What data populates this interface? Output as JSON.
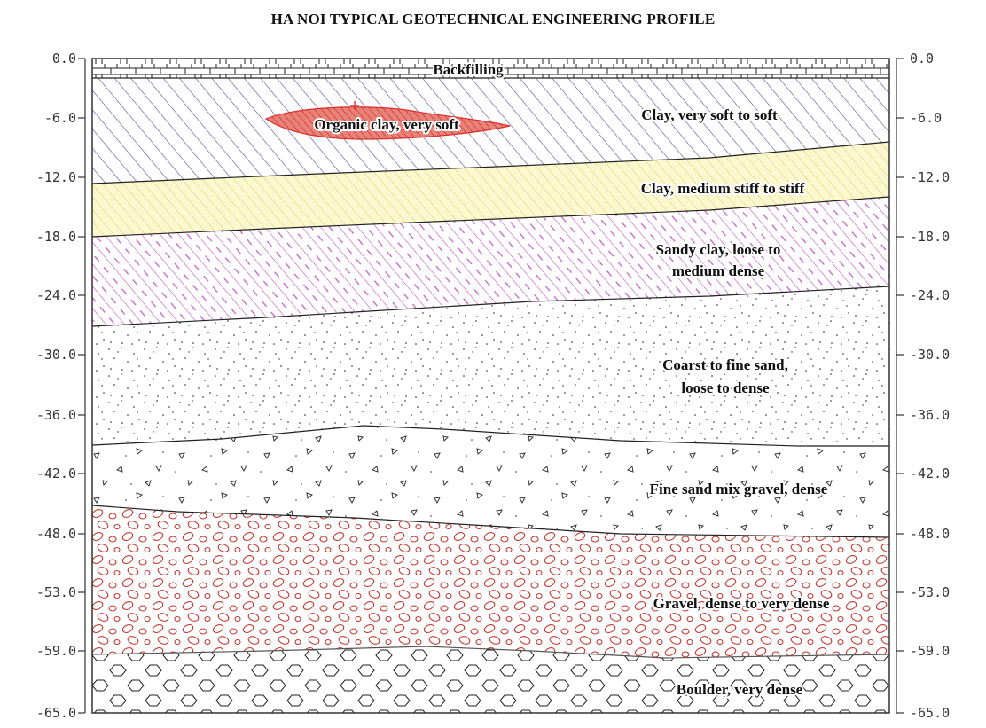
{
  "title": "HA NOI TYPICAL GEOTECHNICAL ENGINEERING PROFILE",
  "axis_ticks": [
    "0.0",
    "-6.0",
    "-12.0",
    "-18.0",
    "-24.0",
    "-30.0",
    "-36.0",
    "-42.0",
    "-48.0",
    "-53.0",
    "-59.0",
    "-65.0"
  ],
  "layers": [
    {
      "key": "backfilling",
      "label": [
        "Backfilling"
      ],
      "fill": "#ffffff",
      "pattern": "grid"
    },
    {
      "key": "clay_soft",
      "label": [
        "Clay, very soft to soft"
      ],
      "color": "#5a5aa0",
      "pattern": "hatch-blue"
    },
    {
      "key": "organic",
      "label": [
        "Organic clay, very soft"
      ],
      "color": "#d9302c",
      "pattern": "lens"
    },
    {
      "key": "clay_stiff",
      "label": [
        "Clay, medium stiff to stiff"
      ],
      "color": "#e6e27a",
      "pattern": "hatch-yellow"
    },
    {
      "key": "sandy_clay",
      "label": [
        "Sandy clay, loose to",
        "medium dense"
      ],
      "color": "#c55fc8",
      "pattern": "hatch-purple"
    },
    {
      "key": "sand",
      "label": [
        "Coarst to fine sand,",
        "loose to dense"
      ],
      "color": "#222222",
      "pattern": "dots"
    },
    {
      "key": "sand_gravel",
      "label": [
        "Fine sand mix gravel, dense"
      ],
      "color": "#222222",
      "pattern": "triangles"
    },
    {
      "key": "gravel",
      "label": [
        "Gravel, dense to very dense"
      ],
      "color": "#c23b32",
      "pattern": "ovals"
    },
    {
      "key": "boulder",
      "label": [
        "Boulder, very dense"
      ],
      "color": "#222222",
      "pattern": "hexagons"
    }
  ]
}
